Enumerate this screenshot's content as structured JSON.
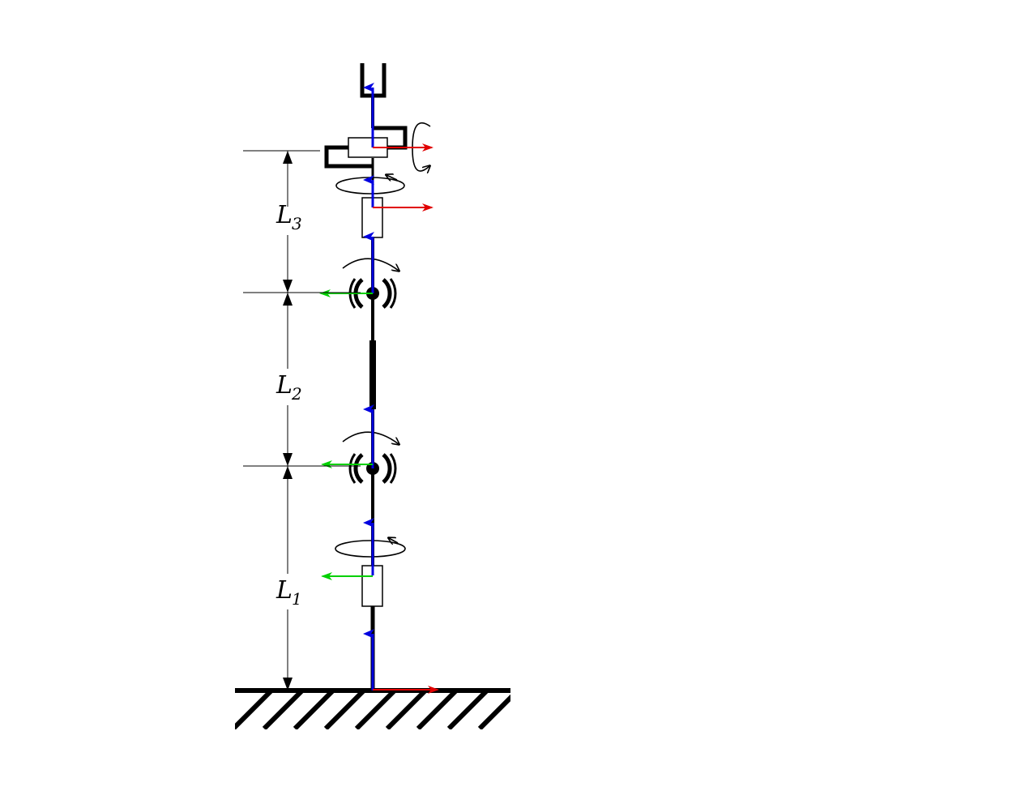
{
  "diagram": {
    "type": "robot-arm-kinematic-schematic",
    "dimensions": [
      {
        "symbol": "L",
        "subscript": "1"
      },
      {
        "symbol": "L",
        "subscript": "2"
      },
      {
        "symbol": "L",
        "subscript": "3"
      }
    ],
    "axis_colors": {
      "x_axis": "#e00000",
      "y_axis": "#00d000",
      "z_axis": "#0000e0"
    }
  }
}
